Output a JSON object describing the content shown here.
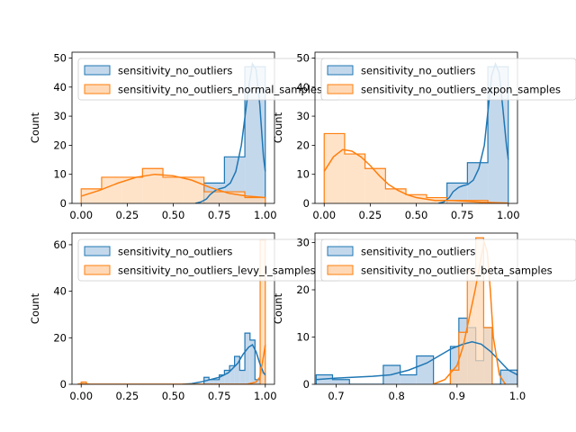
{
  "colors": {
    "blue": "#1f77b4",
    "blue_fill": "#c4d8ec",
    "orange": "#ff7f0e",
    "orange_fill": "#ffd9b7",
    "overlap_fill": "#b0aaa0",
    "legend_border": "#cccccc"
  },
  "chart_data": [
    {
      "type": "histogram",
      "ylabel": "Count",
      "xlim": [
        -0.05,
        1.05
      ],
      "ylim": [
        0,
        52
      ],
      "xticks": [
        0.0,
        0.25,
        0.5,
        0.75,
        1.0
      ],
      "xtick_labels": [
        "0.00",
        "0.25",
        "0.50",
        "0.75",
        "1.00"
      ],
      "yticks": [
        0,
        10,
        20,
        30,
        40,
        50
      ],
      "ytick_labels": [
        "0",
        "10",
        "20",
        "30",
        "40",
        "50"
      ],
      "legend_position": "top-left",
      "grid": false,
      "series": [
        {
          "name": "sensitivity_no_outliers",
          "color": "blue",
          "bin_edges": [
            0.667,
            0.778,
            0.889,
            1.0
          ],
          "counts": [
            7,
            16,
            47
          ],
          "kde_x": [
            0.62,
            0.65,
            0.68,
            0.7,
            0.73,
            0.75,
            0.78,
            0.81,
            0.84,
            0.87,
            0.89,
            0.91,
            0.93,
            0.95,
            0.97,
            0.99,
            1.0
          ],
          "kde_y": [
            0,
            0.5,
            1.5,
            3,
            4.5,
            5,
            5.5,
            7,
            11,
            20,
            30,
            40,
            48,
            46,
            34,
            16,
            11
          ]
        },
        {
          "name": "sensitivity_no_outliers_normal_samples",
          "color": "orange",
          "bin_edges": [
            0.0,
            0.111,
            0.222,
            0.333,
            0.444,
            0.556,
            0.667,
            0.778,
            0.889,
            1.0
          ],
          "counts": [
            5,
            9,
            9,
            12,
            9,
            9,
            4,
            4,
            2
          ],
          "kde_x": [
            0.0,
            0.1,
            0.2,
            0.3,
            0.4,
            0.5,
            0.6,
            0.7,
            0.8,
            0.9,
            1.0
          ],
          "kde_y": [
            2.5,
            4.5,
            7,
            9,
            10,
            9.5,
            8,
            5.5,
            3.5,
            2.5,
            2
          ]
        }
      ]
    },
    {
      "type": "histogram",
      "ylabel": "Count",
      "xlim": [
        -0.05,
        1.05
      ],
      "ylim": [
        0,
        52
      ],
      "xticks": [
        0.0,
        0.25,
        0.5,
        0.75,
        1.0
      ],
      "xtick_labels": [
        "0.00",
        "0.25",
        "0.50",
        "0.75",
        "1.00"
      ],
      "yticks": [
        0,
        10,
        20,
        30,
        40,
        50
      ],
      "ytick_labels": [
        "0",
        "10",
        "20",
        "30",
        "40",
        "50"
      ],
      "legend_position": "top-left",
      "grid": false,
      "series": [
        {
          "name": "sensitivity_no_outliers",
          "color": "blue",
          "bin_edges": [
            0.667,
            0.778,
            0.889,
            1.0
          ],
          "counts": [
            7,
            14,
            47
          ],
          "kde_x": [
            0.62,
            0.65,
            0.68,
            0.7,
            0.73,
            0.75,
            0.78,
            0.81,
            0.84,
            0.87,
            0.89,
            0.91,
            0.93,
            0.95,
            0.97,
            0.99,
            1.0
          ],
          "kde_y": [
            0,
            0.5,
            2,
            4,
            5.5,
            6,
            6.5,
            8,
            12,
            20,
            32,
            44,
            48,
            45,
            33,
            20,
            15
          ]
        },
        {
          "name": "sensitivity_no_outliers_expon_samples",
          "color": "orange",
          "bin_edges": [
            0.0,
            0.111,
            0.222,
            0.333,
            0.444,
            0.556,
            0.667,
            0.778,
            0.889,
            1.0
          ],
          "counts": [
            24,
            17,
            12,
            5,
            3,
            2,
            1,
            1,
            0
          ],
          "kde_x": [
            0.0,
            0.05,
            0.1,
            0.15,
            0.2,
            0.25,
            0.3,
            0.35,
            0.4,
            0.45,
            0.5,
            0.55,
            0.6,
            0.65,
            0.7,
            0.75,
            0.8,
            0.85,
            0.9,
            0.95,
            1.0
          ],
          "kde_y": [
            11,
            16,
            18.5,
            18,
            16,
            13,
            9.5,
            6.5,
            4.5,
            3,
            2,
            1.5,
            1,
            1,
            1,
            0.8,
            0.6,
            0.4,
            0.3,
            0.2,
            0.1
          ]
        }
      ]
    },
    {
      "type": "histogram",
      "ylabel": "Count",
      "xlim": [
        -0.05,
        1.05
      ],
      "ylim": [
        0,
        65
      ],
      "xticks": [
        0.0,
        0.25,
        0.5,
        0.75,
        1.0
      ],
      "xtick_labels": [
        "0.00",
        "0.25",
        "0.50",
        "0.75",
        "1.00"
      ],
      "yticks": [
        0,
        20,
        40,
        60
      ],
      "ytick_labels": [
        "0",
        "20",
        "40",
        "60"
      ],
      "legend_position": "top-left",
      "grid": false,
      "series": [
        {
          "name": "sensitivity_no_outliers",
          "color": "blue",
          "bin_edges": [
            0.667,
            0.694,
            0.722,
            0.75,
            0.778,
            0.806,
            0.833,
            0.861,
            0.889,
            0.917,
            0.944,
            0.972,
            1.0
          ],
          "counts": [
            3,
            2,
            2,
            4,
            6,
            8,
            12,
            6,
            22,
            19,
            2,
            5
          ],
          "kde_x": [
            0.55,
            0.6,
            0.65,
            0.7,
            0.75,
            0.8,
            0.85,
            0.88,
            0.91,
            0.93,
            0.95,
            0.97,
            0.99,
            1.0
          ],
          "kde_y": [
            0,
            0.3,
            1,
            2,
            3,
            5,
            9,
            13,
            16,
            17,
            14,
            9,
            5,
            4
          ]
        },
        {
          "name": "sensitivity_no_outliers_levy_l_samples",
          "color": "orange",
          "bin_edges": [
            0.0,
            0.028,
            0.972,
            1.0
          ],
          "counts": [
            1,
            0,
            62
          ],
          "kde_x": [
            -0.02,
            0.0,
            0.02,
            0.05,
            0.1,
            0.5,
            0.9,
            0.95,
            0.97,
            0.99,
            1.0
          ],
          "kde_y": [
            0,
            0.3,
            0.2,
            0,
            0,
            0,
            0,
            1,
            3,
            12,
            17
          ]
        }
      ]
    },
    {
      "type": "histogram",
      "ylabel": "Count",
      "xlim": [
        0.665,
        1.0
      ],
      "ylim": [
        0,
        32
      ],
      "xticks": [
        0.7,
        0.8,
        0.9,
        1.0
      ],
      "xtick_labels": [
        "0.7",
        "0.8",
        "0.9",
        "1.0"
      ],
      "yticks": [
        0,
        10,
        20,
        30
      ],
      "ytick_labels": [
        "0",
        "10",
        "20",
        "30"
      ],
      "legend_position": "top-left",
      "grid": false,
      "series": [
        {
          "name": "sensitivity_no_outliers",
          "color": "blue",
          "bin_edges": [
            0.667,
            0.694,
            0.722,
            0.75,
            0.778,
            0.806,
            0.833,
            0.861,
            0.889,
            0.903,
            0.917,
            0.931,
            0.944,
            0.958,
            0.972,
            0.986,
            1.0
          ],
          "counts": [
            2,
            1,
            0,
            0,
            4,
            2,
            6,
            0,
            8,
            14,
            12,
            5,
            12,
            0,
            3,
            3
          ],
          "kde_x": [
            0.667,
            0.7,
            0.73,
            0.76,
            0.79,
            0.82,
            0.85,
            0.87,
            0.89,
            0.91,
            0.925,
            0.94,
            0.955,
            0.97,
            0.985,
            1.0
          ],
          "kde_y": [
            1,
            1.3,
            1.5,
            1.7,
            2,
            3,
            4.5,
            6,
            7.5,
            8.5,
            9,
            8.5,
            7,
            5,
            3,
            2
          ]
        },
        {
          "name": "sensitivity_no_outliers_beta_samples",
          "color": "orange",
          "bin_edges": [
            0.889,
            0.903,
            0.917,
            0.931,
            0.944,
            0.958
          ],
          "counts": [
            3,
            11,
            24,
            31,
            12
          ],
          "kde_x": [
            0.86,
            0.88,
            0.9,
            0.91,
            0.92,
            0.93,
            0.94,
            0.945,
            0.95,
            0.955,
            0.96,
            0.97,
            0.98
          ],
          "kde_y": [
            0,
            1,
            4,
            8,
            14,
            20,
            27,
            30,
            28,
            20,
            10,
            2,
            0
          ]
        }
      ]
    }
  ]
}
